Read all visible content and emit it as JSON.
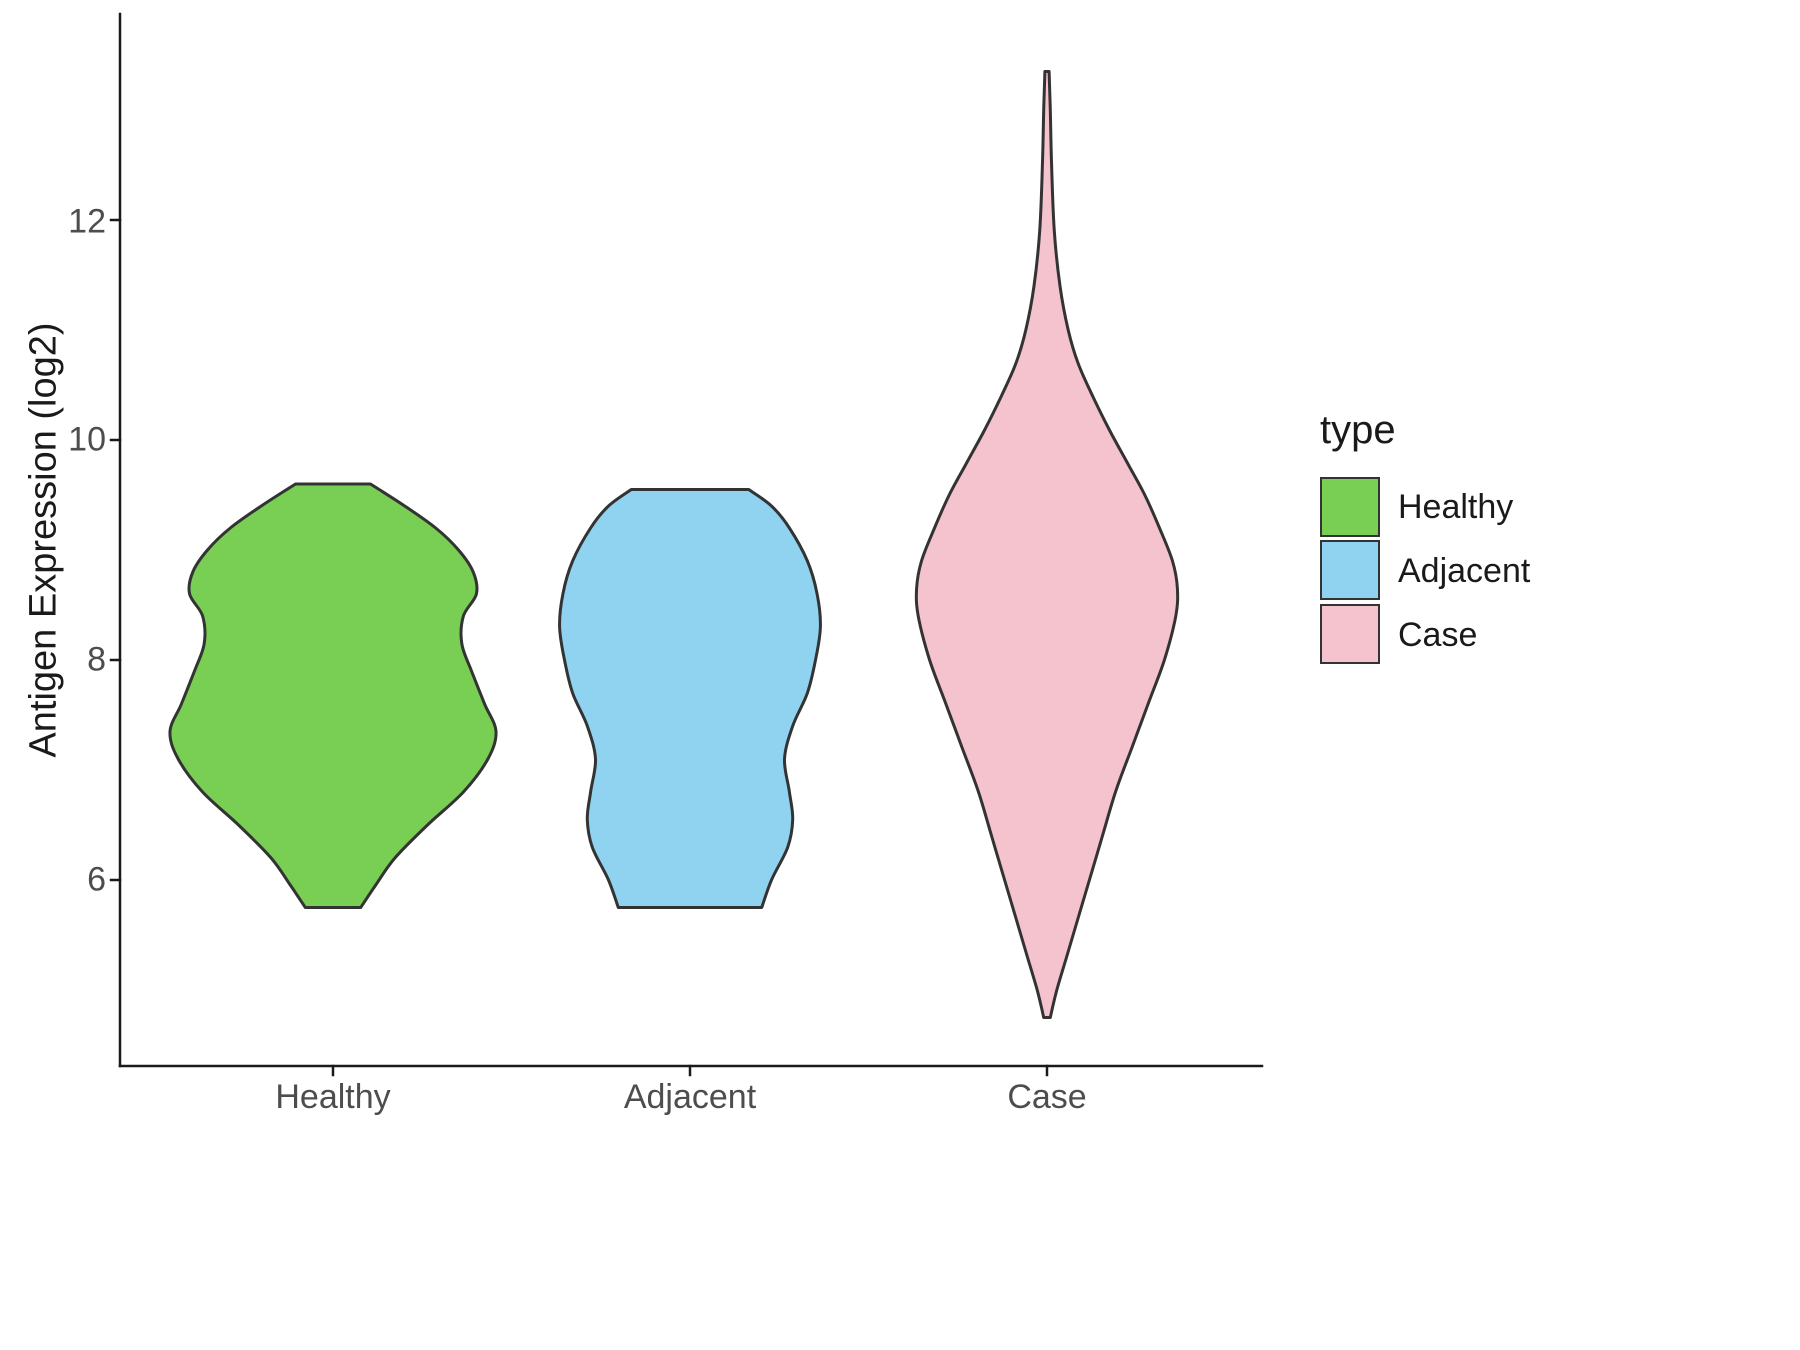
{
  "chart_data": {
    "type": "violin",
    "title": "",
    "xlabel": "",
    "ylabel": "Antigen Expression (log2)",
    "categories": [
      "Healthy",
      "Adjacent",
      "Case"
    ],
    "y_ticks": [
      6,
      8,
      10,
      12
    ],
    "ylim": [
      4.3,
      13.9
    ],
    "grid": "off",
    "legend": {
      "title": "type",
      "position": "right",
      "entries": [
        {
          "label": "Healthy",
          "color": "#79CF53"
        },
        {
          "label": "Adjacent",
          "color": "#8FD3F1"
        },
        {
          "label": "Case",
          "color": "#F5C3CE"
        }
      ]
    },
    "colors": {
      "outline": "#333333",
      "axis": "#1a1a1a",
      "tick_text": "#4d4d4d"
    },
    "series": [
      {
        "name": "Healthy",
        "color": "#79CF53",
        "value_range": [
          5.75,
          9.6
        ],
        "profile": [
          [
            5.75,
            0.17
          ],
          [
            5.95,
            0.26
          ],
          [
            6.2,
            0.38
          ],
          [
            6.5,
            0.58
          ],
          [
            6.8,
            0.8
          ],
          [
            7.1,
            0.95
          ],
          [
            7.35,
            1.0
          ],
          [
            7.6,
            0.93
          ],
          [
            7.9,
            0.85
          ],
          [
            8.15,
            0.79
          ],
          [
            8.4,
            0.8
          ],
          [
            8.6,
            0.88
          ],
          [
            8.8,
            0.86
          ],
          [
            9.0,
            0.77
          ],
          [
            9.2,
            0.63
          ],
          [
            9.4,
            0.44
          ],
          [
            9.6,
            0.23
          ]
        ]
      },
      {
        "name": "Adjacent",
        "color": "#8FD3F1",
        "value_range": [
          5.75,
          9.55
        ],
        "profile": [
          [
            5.75,
            0.44
          ],
          [
            6.0,
            0.5
          ],
          [
            6.3,
            0.6
          ],
          [
            6.55,
            0.63
          ],
          [
            6.8,
            0.61
          ],
          [
            7.1,
            0.58
          ],
          [
            7.4,
            0.63
          ],
          [
            7.7,
            0.72
          ],
          [
            8.0,
            0.77
          ],
          [
            8.3,
            0.8
          ],
          [
            8.6,
            0.78
          ],
          [
            8.9,
            0.72
          ],
          [
            9.2,
            0.61
          ],
          [
            9.4,
            0.5
          ],
          [
            9.55,
            0.36
          ]
        ]
      },
      {
        "name": "Case",
        "color": "#F5C3CE",
        "value_range": [
          4.75,
          13.35
        ],
        "profile": [
          [
            4.75,
            0.02
          ],
          [
            5.0,
            0.06
          ],
          [
            5.3,
            0.12
          ],
          [
            5.7,
            0.2
          ],
          [
            6.0,
            0.26
          ],
          [
            6.4,
            0.34
          ],
          [
            6.8,
            0.42
          ],
          [
            7.2,
            0.52
          ],
          [
            7.6,
            0.62
          ],
          [
            8.0,
            0.72
          ],
          [
            8.4,
            0.79
          ],
          [
            8.65,
            0.8
          ],
          [
            8.9,
            0.77
          ],
          [
            9.2,
            0.69
          ],
          [
            9.5,
            0.6
          ],
          [
            9.8,
            0.49
          ],
          [
            10.1,
            0.38
          ],
          [
            10.4,
            0.28
          ],
          [
            10.7,
            0.19
          ],
          [
            11.0,
            0.13
          ],
          [
            11.4,
            0.08
          ],
          [
            11.9,
            0.045
          ],
          [
            12.5,
            0.028
          ],
          [
            13.0,
            0.02
          ],
          [
            13.35,
            0.013
          ]
        ]
      }
    ]
  }
}
